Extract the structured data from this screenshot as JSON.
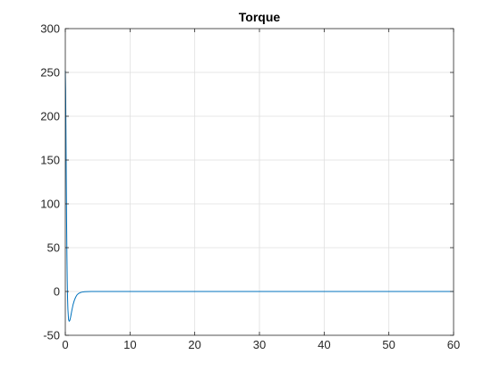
{
  "chart_data": {
    "type": "line",
    "title": "Torque",
    "xlabel": "",
    "ylabel": "",
    "xlim": [
      0,
      60
    ],
    "ylim": [
      -50,
      300
    ],
    "xticks": [
      0,
      10,
      20,
      30,
      40,
      50,
      60
    ],
    "yticks": [
      -50,
      0,
      50,
      100,
      150,
      200,
      250,
      300
    ],
    "grid": true,
    "legend": "none",
    "series": [
      {
        "color": "#0072BD",
        "x": [
          0,
          0.05,
          0.1,
          0.15,
          0.2,
          0.25,
          0.3,
          0.35,
          0.4,
          0.5,
          0.6,
          0.7,
          0.8,
          0.9,
          1.0,
          1.2,
          1.4,
          1.6,
          1.8,
          2.0,
          2.3,
          2.6,
          3.0,
          3.5,
          4.0,
          5.0,
          6.0,
          8.0,
          10,
          20,
          30,
          40,
          50,
          60
        ],
        "y": [
          252,
          230,
          185,
          130,
          80,
          42,
          12,
          -8,
          -20,
          -32,
          -34,
          -33,
          -30,
          -26,
          -22,
          -15,
          -10,
          -6.5,
          -4,
          -2.5,
          -1.3,
          -0.7,
          -0.3,
          -0.1,
          0,
          0,
          0,
          0,
          0,
          0,
          0,
          0,
          0,
          0
        ]
      }
    ]
  }
}
